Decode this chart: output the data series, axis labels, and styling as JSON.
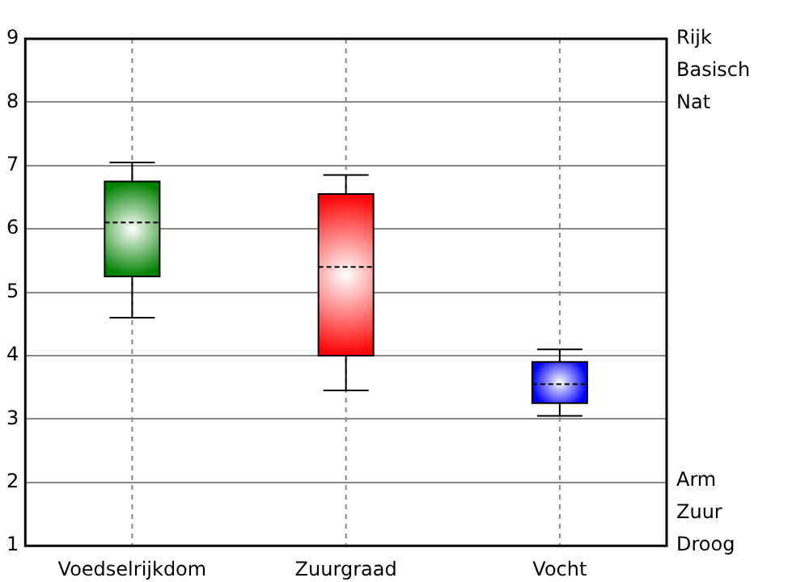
{
  "chart_data": {
    "type": "box",
    "categories": [
      "Voedselrijkdom",
      "Zuurgraad",
      "Vocht"
    ],
    "colors": [
      "#008000",
      "#ff0000",
      "#0000ff"
    ],
    "boxes": [
      {
        "low": 4.6,
        "q1": 5.25,
        "median": 6.1,
        "q3": 6.75,
        "high": 7.05
      },
      {
        "low": 3.45,
        "q1": 4.0,
        "median": 5.4,
        "q3": 6.55,
        "high": 6.85
      },
      {
        "low": 3.05,
        "q1": 3.25,
        "median": 3.55,
        "q3": 3.9,
        "high": 4.1
      }
    ],
    "ylim": [
      1,
      9
    ],
    "yticks": [
      1,
      2,
      3,
      4,
      5,
      6,
      7,
      8,
      9
    ],
    "grid": true,
    "annotations": [
      "Rijk",
      "Basisch",
      "Nat",
      "Arm",
      "Zuur",
      "Droog"
    ]
  }
}
